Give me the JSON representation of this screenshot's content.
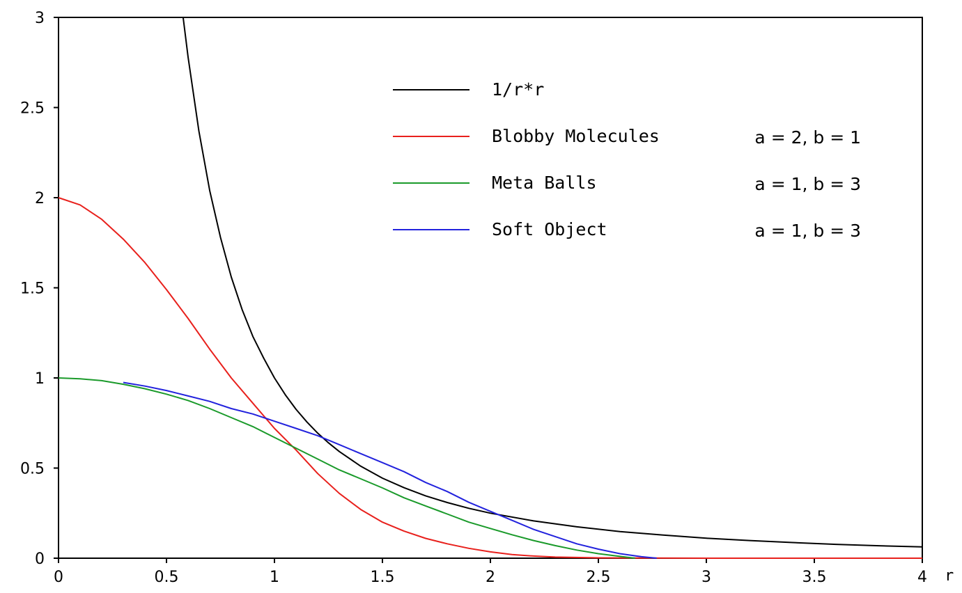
{
  "chart_data": {
    "type": "line",
    "title": "",
    "xlabel": "r",
    "ylabel": "",
    "xlim": [
      0,
      4
    ],
    "ylim": [
      0,
      3
    ],
    "xticks": [
      0,
      0.5,
      1,
      1.5,
      2,
      2.5,
      3,
      3.5,
      4
    ],
    "xtick_labels": [
      "0",
      "0.5",
      "1",
      "1.5",
      "2",
      "2.5",
      "3",
      "3.5",
      "4"
    ],
    "yticks": [
      0,
      0.5,
      1,
      1.5,
      2,
      2.5,
      3
    ],
    "ytick_labels": [
      "0",
      "0.5",
      "1",
      "1.5",
      "2",
      "2.5",
      "3"
    ],
    "grid": false,
    "legend_position": "top-center",
    "series": [
      {
        "name": "1/r*r",
        "params": "",
        "color": "#000000",
        "x": [
          0.577,
          0.6,
          0.65,
          0.7,
          0.75,
          0.8,
          0.85,
          0.9,
          0.95,
          1.0,
          1.05,
          1.1,
          1.15,
          1.2,
          1.25,
          1.3,
          1.4,
          1.5,
          1.6,
          1.7,
          1.8,
          1.9,
          2.0,
          2.2,
          2.4,
          2.6,
          2.8,
          3.0,
          3.2,
          3.4,
          3.6,
          3.8,
          4.0
        ],
        "y": [
          3.0,
          2.78,
          2.37,
          2.04,
          1.78,
          1.56,
          1.38,
          1.23,
          1.11,
          1.0,
          0.907,
          0.826,
          0.756,
          0.694,
          0.64,
          0.592,
          0.51,
          0.444,
          0.391,
          0.346,
          0.309,
          0.277,
          0.25,
          0.207,
          0.174,
          0.148,
          0.128,
          0.111,
          0.098,
          0.087,
          0.077,
          0.069,
          0.0625
        ]
      },
      {
        "name": "Blobby Molecules",
        "params": "a = 2, b = 1",
        "color": "#e8201c",
        "x": [
          0,
          0.1,
          0.2,
          0.3,
          0.4,
          0.5,
          0.6,
          0.7,
          0.8,
          0.9,
          1.0,
          1.1,
          1.2,
          1.3,
          1.4,
          1.5,
          1.6,
          1.7,
          1.8,
          1.9,
          2.0,
          2.1,
          2.2,
          2.3,
          2.5,
          3.0,
          3.5,
          4.0
        ],
        "y": [
          2.0,
          1.96,
          1.88,
          1.77,
          1.64,
          1.49,
          1.33,
          1.16,
          1.0,
          0.86,
          0.72,
          0.6,
          0.47,
          0.36,
          0.27,
          0.2,
          0.15,
          0.11,
          0.08,
          0.055,
          0.035,
          0.02,
          0.012,
          0.006,
          0.002,
          0.0,
          0.0,
          0.0
        ]
      },
      {
        "name": "Meta Balls",
        "params": "a = 1, b = 3",
        "color": "#1a9a2a",
        "x": [
          0,
          0.1,
          0.2,
          0.3,
          0.4,
          0.5,
          0.6,
          0.7,
          0.8,
          0.9,
          1.0,
          1.1,
          1.2,
          1.3,
          1.4,
          1.5,
          1.6,
          1.7,
          1.8,
          1.9,
          2.0,
          2.1,
          2.2,
          2.3,
          2.4,
          2.5,
          2.6,
          2.67
        ],
        "y": [
          1.0,
          0.995,
          0.985,
          0.965,
          0.94,
          0.91,
          0.875,
          0.83,
          0.78,
          0.73,
          0.67,
          0.61,
          0.55,
          0.49,
          0.44,
          0.39,
          0.335,
          0.29,
          0.245,
          0.2,
          0.165,
          0.13,
          0.098,
          0.07,
          0.045,
          0.025,
          0.01,
          0.0
        ]
      },
      {
        "name": "Soft Object",
        "params": "a = 1, b = 3",
        "color": "#2222dd",
        "x": [
          0.3,
          0.4,
          0.5,
          0.6,
          0.7,
          0.8,
          0.9,
          1.0,
          1.1,
          1.2,
          1.3,
          1.4,
          1.5,
          1.6,
          1.7,
          1.8,
          1.9,
          2.0,
          2.1,
          2.2,
          2.3,
          2.4,
          2.5,
          2.6,
          2.7,
          2.77
        ],
        "y": [
          0.975,
          0.955,
          0.93,
          0.9,
          0.87,
          0.83,
          0.8,
          0.76,
          0.72,
          0.68,
          0.63,
          0.58,
          0.53,
          0.48,
          0.42,
          0.37,
          0.31,
          0.26,
          0.21,
          0.16,
          0.12,
          0.08,
          0.05,
          0.025,
          0.008,
          0.0
        ]
      }
    ]
  }
}
